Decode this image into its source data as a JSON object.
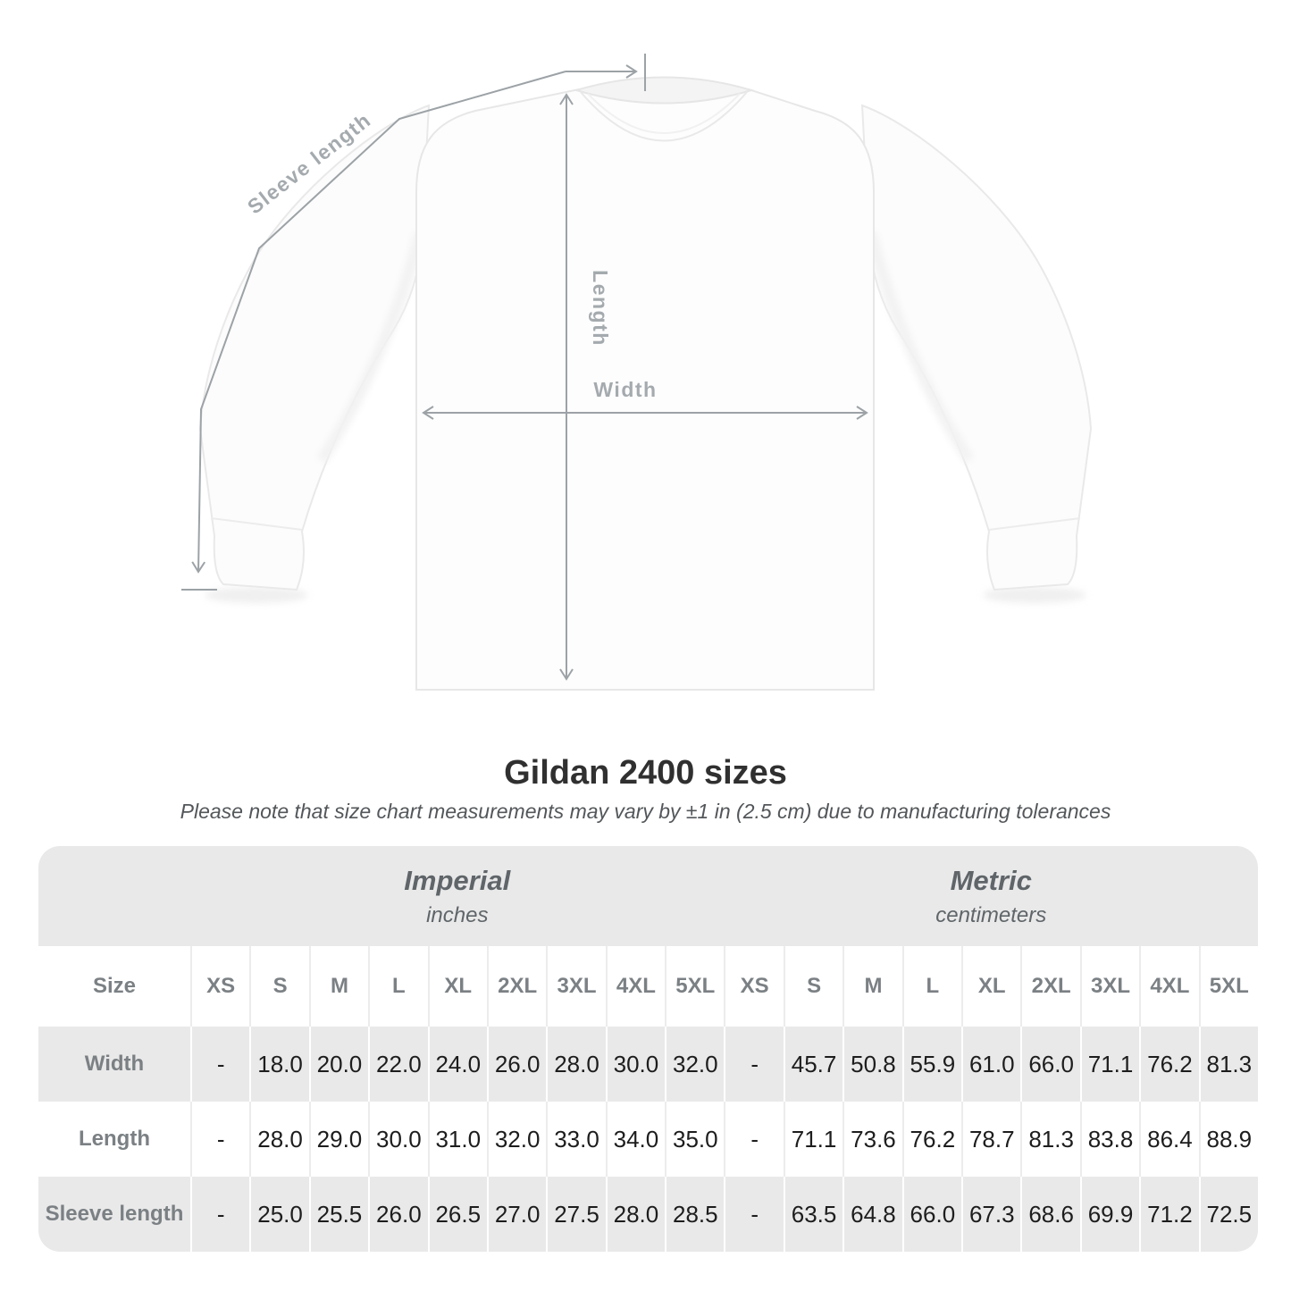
{
  "diagram": {
    "labels": {
      "sleeve": "Sleeve length",
      "length": "Length",
      "width": "Width"
    },
    "colors": {
      "measure_line": "#9ca2a6",
      "measure_label": "#a4aaae",
      "shirt_edge": "#e9e9e9"
    }
  },
  "title": "Gildan 2400 sizes",
  "subtitle": "Please note that size chart measurements may vary by ±1 in (2.5 cm) due to manufacturing tolerances",
  "table": {
    "corner_label": "Size",
    "unit_groups": [
      {
        "name": "Imperial",
        "unit": "inches"
      },
      {
        "name": "Metric",
        "unit": "centimeters"
      }
    ],
    "sizes": [
      "XS",
      "S",
      "M",
      "L",
      "XL",
      "2XL",
      "3XL",
      "4XL",
      "5XL"
    ],
    "rows": [
      {
        "label": "Width",
        "imperial": [
          "-",
          "18.0",
          "20.0",
          "22.0",
          "24.0",
          "26.0",
          "28.0",
          "30.0",
          "32.0"
        ],
        "metric": [
          "-",
          "45.7",
          "50.8",
          "55.9",
          "61.0",
          "66.0",
          "71.1",
          "76.2",
          "81.3"
        ]
      },
      {
        "label": "Length",
        "imperial": [
          "-",
          "28.0",
          "29.0",
          "30.0",
          "31.0",
          "32.0",
          "33.0",
          "34.0",
          "35.0"
        ],
        "metric": [
          "-",
          "71.1",
          "73.6",
          "76.2",
          "78.7",
          "81.3",
          "83.8",
          "86.4",
          "88.9"
        ]
      },
      {
        "label": "Sleeve length",
        "imperial": [
          "-",
          "25.0",
          "25.5",
          "26.0",
          "26.5",
          "27.0",
          "27.5",
          "28.0",
          "28.5"
        ],
        "metric": [
          "-",
          "63.5",
          "64.8",
          "66.0",
          "67.3",
          "68.6",
          "69.9",
          "71.2",
          "72.5"
        ]
      }
    ],
    "colors": {
      "band_bg": "#e9e9e9",
      "row_alt_bg": "#e9e9e9",
      "header_text": "#7b8084",
      "value_text": "#1d1d1d"
    }
  },
  "chart_data": {
    "type": "table",
    "title": "Gildan 2400 sizes",
    "subtitle": "Please note that size chart measurements may vary by ±1 in (2.5 cm) due to manufacturing tolerances",
    "unit_groups": [
      "Imperial (inches)",
      "Metric (centimeters)"
    ],
    "columns": [
      "XS",
      "S",
      "M",
      "L",
      "XL",
      "2XL",
      "3XL",
      "4XL",
      "5XL"
    ],
    "rows": [
      {
        "label": "Width",
        "imperial_inches": [
          null,
          18.0,
          20.0,
          22.0,
          24.0,
          26.0,
          28.0,
          30.0,
          32.0
        ],
        "metric_centimeters": [
          null,
          45.7,
          50.8,
          55.9,
          61.0,
          66.0,
          71.1,
          76.2,
          81.3
        ]
      },
      {
        "label": "Length",
        "imperial_inches": [
          null,
          28.0,
          29.0,
          30.0,
          31.0,
          32.0,
          33.0,
          34.0,
          35.0
        ],
        "metric_centimeters": [
          null,
          71.1,
          73.6,
          76.2,
          78.7,
          81.3,
          83.8,
          86.4,
          88.9
        ]
      },
      {
        "label": "Sleeve length",
        "imperial_inches": [
          null,
          25.0,
          25.5,
          26.0,
          26.5,
          27.0,
          27.5,
          28.0,
          28.5
        ],
        "metric_centimeters": [
          null,
          63.5,
          64.8,
          66.0,
          67.3,
          68.6,
          69.9,
          71.2,
          72.5
        ]
      }
    ]
  }
}
